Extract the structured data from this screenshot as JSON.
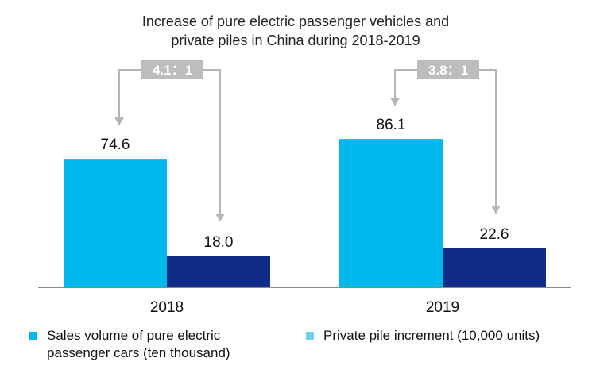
{
  "chart_data": {
    "type": "bar",
    "title": "Increase of pure electric passenger vehicles and private piles in China during 2018-2019",
    "title_lines": [
      "Increase of pure electric passenger vehicles and",
      "private piles in China during 2018-2019"
    ],
    "categories": [
      "2018",
      "2019"
    ],
    "series": [
      {
        "name": "Sales volume of pure electric passenger cars (ten thousand)",
        "legend_lines": [
          "Sales volume of pure electric",
          "passenger cars (ten thousand)"
        ],
        "values": [
          74.6,
          86.1
        ],
        "value_labels": [
          "74.6",
          "86.1"
        ],
        "color": "#00b9ec",
        "legend_color": "#00b9ec"
      },
      {
        "name": "Private pile increment (10,000 units)",
        "legend_lines": [
          "Private pile increment (10,000 units)"
        ],
        "values": [
          18.0,
          22.6
        ],
        "value_labels": [
          "18.0",
          "22.6"
        ],
        "color": "#102c86",
        "legend_color": "#6ccfec"
      }
    ],
    "annotations": [
      {
        "category": "2018",
        "text": "4.1：1"
      },
      {
        "category": "2019",
        "text": "3.8：1"
      }
    ],
    "ylim": [
      0,
      100
    ],
    "grid": false,
    "legend_position": "bottom",
    "colors": {
      "arrow": "#b5b5b5",
      "ratio_box": "#bdbdbd",
      "axis": "#444444"
    }
  }
}
